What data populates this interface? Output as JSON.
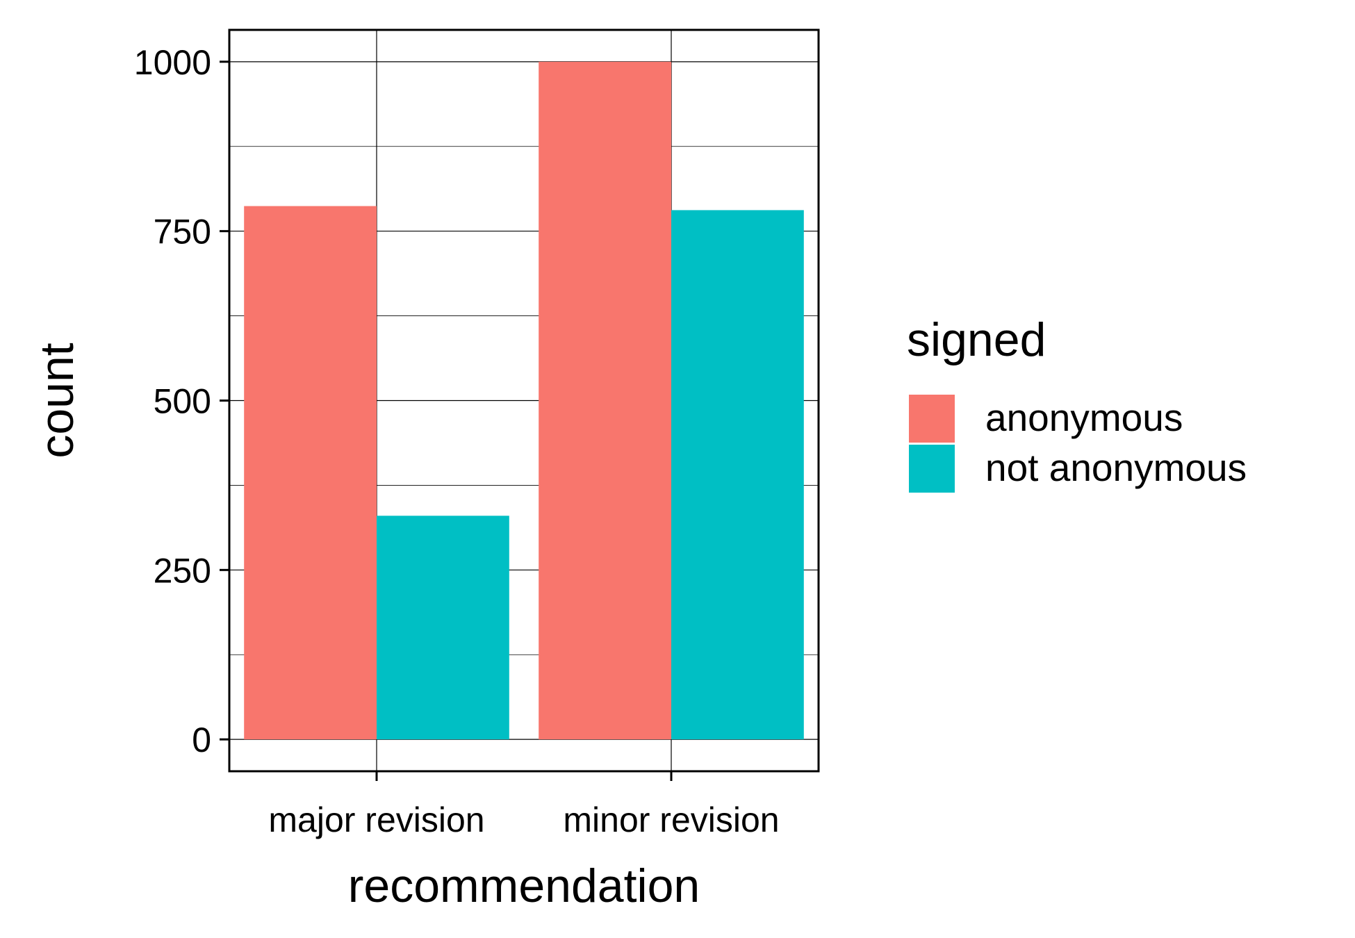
{
  "chart_data": {
    "type": "bar",
    "title": "",
    "xlabel": "recommendation",
    "ylabel": "count",
    "categories": [
      "major revision",
      "minor revision"
    ],
    "series": [
      {
        "name": "anonymous",
        "color": "#F8766D",
        "values": [
          787,
          1000
        ]
      },
      {
        "name": "not anonymous",
        "color": "#00BFC4",
        "values": [
          330,
          781
        ]
      }
    ],
    "ylim": [
      -47,
      1047
    ],
    "yticks": [
      0,
      250,
      500,
      750,
      1000
    ],
    "yminor": [
      125,
      375,
      625,
      875
    ],
    "grid": true,
    "legend": {
      "title": "signed",
      "position": "right"
    }
  }
}
